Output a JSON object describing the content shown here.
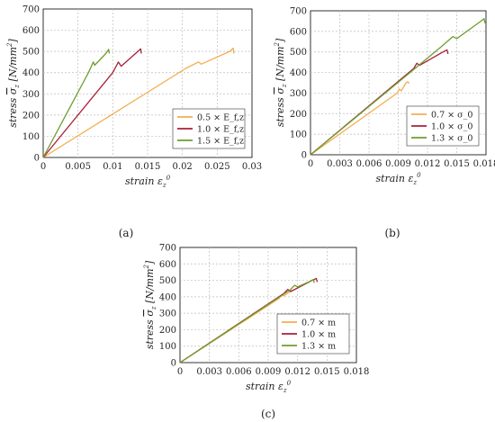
{
  "chart_data": [
    {
      "panel": "a",
      "caption": "(a)",
      "type": "line",
      "xlabel": "strain ε_z^0",
      "ylabel": "stress σ̄_z [N/mm²]",
      "xlim": [
        0,
        0.03
      ],
      "ylim": [
        0,
        700
      ],
      "xticks": [
        "0",
        "0.005",
        "0.01",
        "0.015",
        "0.02",
        "0.025",
        "0.03"
      ],
      "xtick_values": [
        0,
        0.005,
        0.01,
        0.015,
        0.02,
        0.025,
        0.03
      ],
      "yticks": [
        "0",
        "100",
        "200",
        "300",
        "400",
        "500",
        "600",
        "700"
      ],
      "ytick_values": [
        0,
        100,
        200,
        300,
        400,
        500,
        600,
        700
      ],
      "grid": true,
      "legend": "lower-right",
      "series": [
        {
          "name": "0.5 × E_f,z",
          "color": "#f2ae50",
          "x": [
            0,
            0.0205,
            0.0223,
            0.0227,
            0.0268,
            0.0273,
            0.0274
          ],
          "y": [
            0,
            420,
            450,
            440,
            500,
            515,
            490
          ]
        },
        {
          "name": "1.0 × E_f,z",
          "color": "#a8203a",
          "x": [
            0,
            0.01,
            0.0108,
            0.0112,
            0.0136,
            0.014,
            0.0141
          ],
          "y": [
            0,
            400,
            450,
            430,
            500,
            512,
            490
          ]
        },
        {
          "name": "1.5 × E_f,z",
          "color": "#6e9e2e",
          "x": [
            0,
            0.0065,
            0.0072,
            0.0074,
            0.009,
            0.0094,
            0.0095
          ],
          "y": [
            0,
            400,
            450,
            435,
            490,
            510,
            490
          ]
        }
      ]
    },
    {
      "panel": "b",
      "caption": "(b)",
      "type": "line",
      "xlabel": "strain ε_z^0",
      "ylabel": "stress σ̄_z [N/mm²]",
      "xlim": [
        0,
        0.018
      ],
      "ylim": [
        0,
        700
      ],
      "xticks": [
        "0",
        "0.003",
        "0.006",
        "0.009",
        "0.012",
        "0.015",
        "0.018"
      ],
      "xtick_values": [
        0,
        0.003,
        0.006,
        0.009,
        0.012,
        0.015,
        0.018
      ],
      "yticks": [
        "0",
        "100",
        "200",
        "300",
        "400",
        "500",
        "600",
        "700"
      ],
      "ytick_values": [
        0,
        100,
        200,
        300,
        400,
        500,
        600,
        700
      ],
      "grid": true,
      "legend": "lower-right",
      "series": [
        {
          "name": "0.7 × σ_0",
          "color": "#f2ae50",
          "x": [
            0,
            0.0089,
            0.0091,
            0.0093,
            0.0098,
            0.01,
            0.0101
          ],
          "y": [
            0,
            300,
            320,
            310,
            350,
            355,
            345
          ]
        },
        {
          "name": "1.0 × σ_0",
          "color": "#a8203a",
          "x": [
            0,
            0.0106,
            0.0109,
            0.0112,
            0.0136,
            0.014,
            0.0141
          ],
          "y": [
            0,
            420,
            445,
            435,
            500,
            510,
            490
          ]
        },
        {
          "name": "1.3 × σ_0",
          "color": "#6e9e2e",
          "x": [
            0,
            0.0134,
            0.0146,
            0.015,
            0.0175,
            0.0178,
            0.0179
          ],
          "y": [
            0,
            525,
            575,
            565,
            650,
            662,
            640
          ]
        }
      ]
    },
    {
      "panel": "c",
      "caption": "(c)",
      "type": "line",
      "xlabel": "strain ε_z^0",
      "ylabel": "stress σ̄_z [N/mm²]",
      "xlim": [
        0,
        0.018
      ],
      "ylim": [
        0,
        700
      ],
      "xticks": [
        "0",
        "0.003",
        "0.006",
        "0.009",
        "0.012",
        "0.015",
        "0.018"
      ],
      "xtick_values": [
        0,
        0.003,
        0.006,
        0.009,
        0.012,
        0.015,
        0.018
      ],
      "yticks": [
        "0",
        "100",
        "200",
        "300",
        "400",
        "500",
        "600",
        "700"
      ],
      "ytick_values": [
        0,
        100,
        200,
        300,
        400,
        500,
        600,
        700
      ],
      "grid": true,
      "legend": "lower-right",
      "series": [
        {
          "name": "0.7 × m",
          "color": "#f2ae50",
          "x": [
            0,
            0.0101,
            0.0104,
            0.0106,
            0.0112,
            0.0114
          ],
          "y": [
            0,
            390,
            415,
            405,
            430,
            440
          ]
        },
        {
          "name": "1.0 × m",
          "color": "#a8203a",
          "x": [
            0,
            0.0106,
            0.011,
            0.0113,
            0.0135,
            0.0139,
            0.014
          ],
          "y": [
            0,
            420,
            445,
            432,
            500,
            512,
            490
          ]
        },
        {
          "name": "1.3 × m",
          "color": "#6e9e2e",
          "x": [
            0,
            0.0112,
            0.0117,
            0.012,
            0.0133,
            0.0136,
            0.0137
          ],
          "y": [
            0,
            440,
            470,
            460,
            495,
            505,
            485
          ]
        }
      ]
    }
  ]
}
